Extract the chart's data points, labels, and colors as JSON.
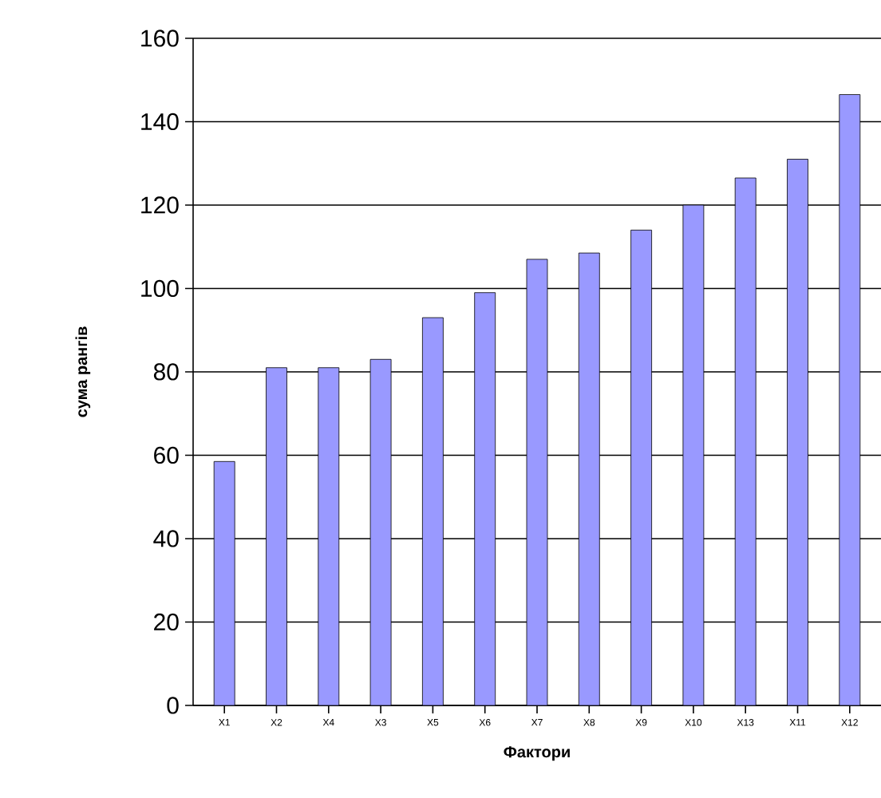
{
  "chart_data": {
    "type": "bar",
    "xlabel": "Фактори",
    "ylabel": "сума рангів",
    "categories": [
      "X1",
      "X2",
      "X4",
      "X3",
      "X5",
      "X6",
      "X7",
      "X8",
      "X9",
      "X10",
      "X13",
      "X11",
      "X12"
    ],
    "values": [
      58.5,
      81,
      81,
      83,
      93,
      99,
      107,
      108.5,
      114,
      120,
      126.5,
      131,
      146.5
    ],
    "color": "#9999ff",
    "ylim": [
      0,
      160
    ],
    "yticks": [
      0,
      20,
      40,
      60,
      80,
      100,
      120,
      140,
      160
    ],
    "grid": "y"
  }
}
